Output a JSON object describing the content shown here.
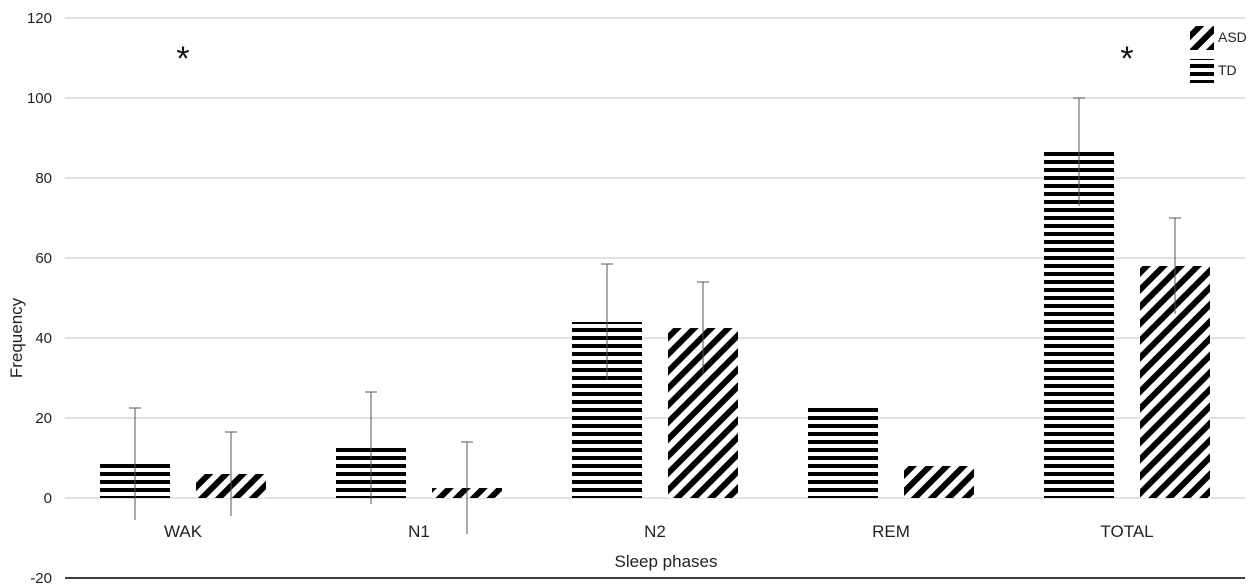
{
  "chart_data": {
    "type": "bar",
    "title": "",
    "xlabel": "Sleep phases",
    "ylabel": "Frequency",
    "ylim": [
      -20,
      120
    ],
    "yticks": [
      -20,
      0,
      20,
      40,
      60,
      80,
      100,
      120
    ],
    "grid": true,
    "legend_position": "top-right",
    "categories": [
      "WAK",
      "N1",
      "N2",
      "REM",
      "TOTAL"
    ],
    "series": [
      {
        "name": "TD",
        "pattern": "horizontal-stripes",
        "values": [
          8.5,
          12.5,
          44,
          22.5,
          86.5
        ],
        "errors": [
          14,
          14,
          14.5,
          0,
          13.5
        ]
      },
      {
        "name": "ASD",
        "pattern": "diagonal-stripes",
        "values": [
          6,
          2.5,
          42.5,
          8,
          58
        ],
        "errors": [
          10.5,
          11.5,
          11.5,
          0,
          12
        ]
      }
    ],
    "annotations": [
      {
        "category": "WAK",
        "text": "*"
      },
      {
        "category": "TOTAL",
        "text": "*"
      }
    ]
  }
}
